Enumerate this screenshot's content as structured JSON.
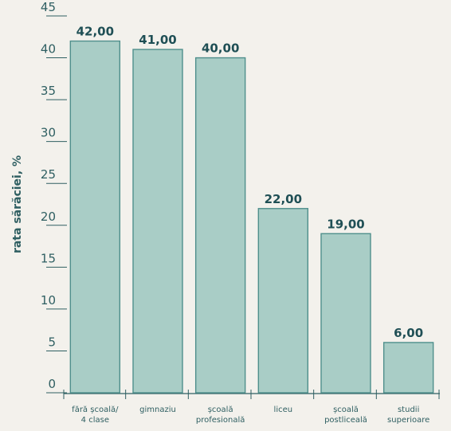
{
  "colors": {
    "bar_fill": "#a9cdc6",
    "bar_stroke": "#4f8f8c",
    "text": "#2f5f62",
    "background": "#f3f1ec"
  },
  "chart_data": {
    "type": "bar",
    "title": "",
    "xlabel": "",
    "ylabel": "rata sărăciei, %",
    "ylim": [
      0,
      45
    ],
    "yticks": [
      0,
      5,
      10,
      15,
      20,
      25,
      30,
      35,
      40,
      45
    ],
    "grid": false,
    "categories": [
      [
        "fără școală/",
        "4 clase"
      ],
      [
        "gimnaziu"
      ],
      [
        "școală",
        "profesională"
      ],
      [
        "liceu"
      ],
      [
        "școală",
        "postliceală"
      ],
      [
        "studii",
        "superioare"
      ]
    ],
    "values": [
      42.0,
      41.0,
      40.0,
      22.0,
      19.0,
      6.0
    ],
    "data_labels": [
      "42,00",
      "41,00",
      "40,00",
      "22,00",
      "19,00",
      "6,00"
    ]
  }
}
